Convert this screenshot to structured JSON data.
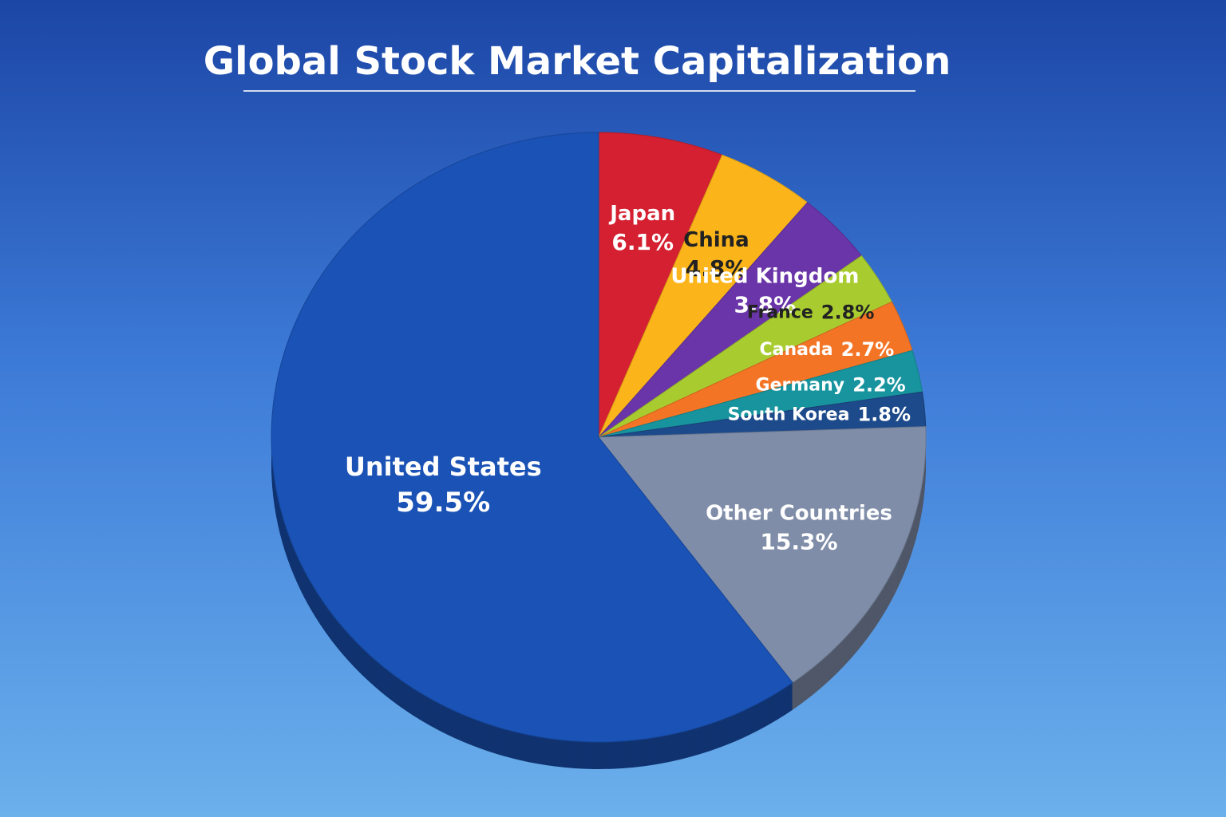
{
  "chart_data": {
    "type": "pie",
    "title": "Global Stock Market Capitalization",
    "categories": [
      "Japan",
      "China",
      "United Kingdom",
      "France",
      "Canada",
      "Germany",
      "South Korea",
      "Other Countries",
      "United States"
    ],
    "values": [
      6.1,
      4.8,
      3.8,
      2.8,
      2.7,
      2.2,
      1.8,
      15.3,
      59.5
    ],
    "value_labels": [
      "6.1%",
      "4.8%",
      "3.8%",
      "2.8%",
      "2.7%",
      "2.2%",
      "1.8%",
      "15.3%",
      "59.5%"
    ],
    "colors": [
      "#d42030",
      "#fbb51a",
      "#6a35a8",
      "#a8cc30",
      "#f47425",
      "#17949e",
      "#1d4a8a",
      "#7f8da8",
      "#1a52b5"
    ]
  }
}
